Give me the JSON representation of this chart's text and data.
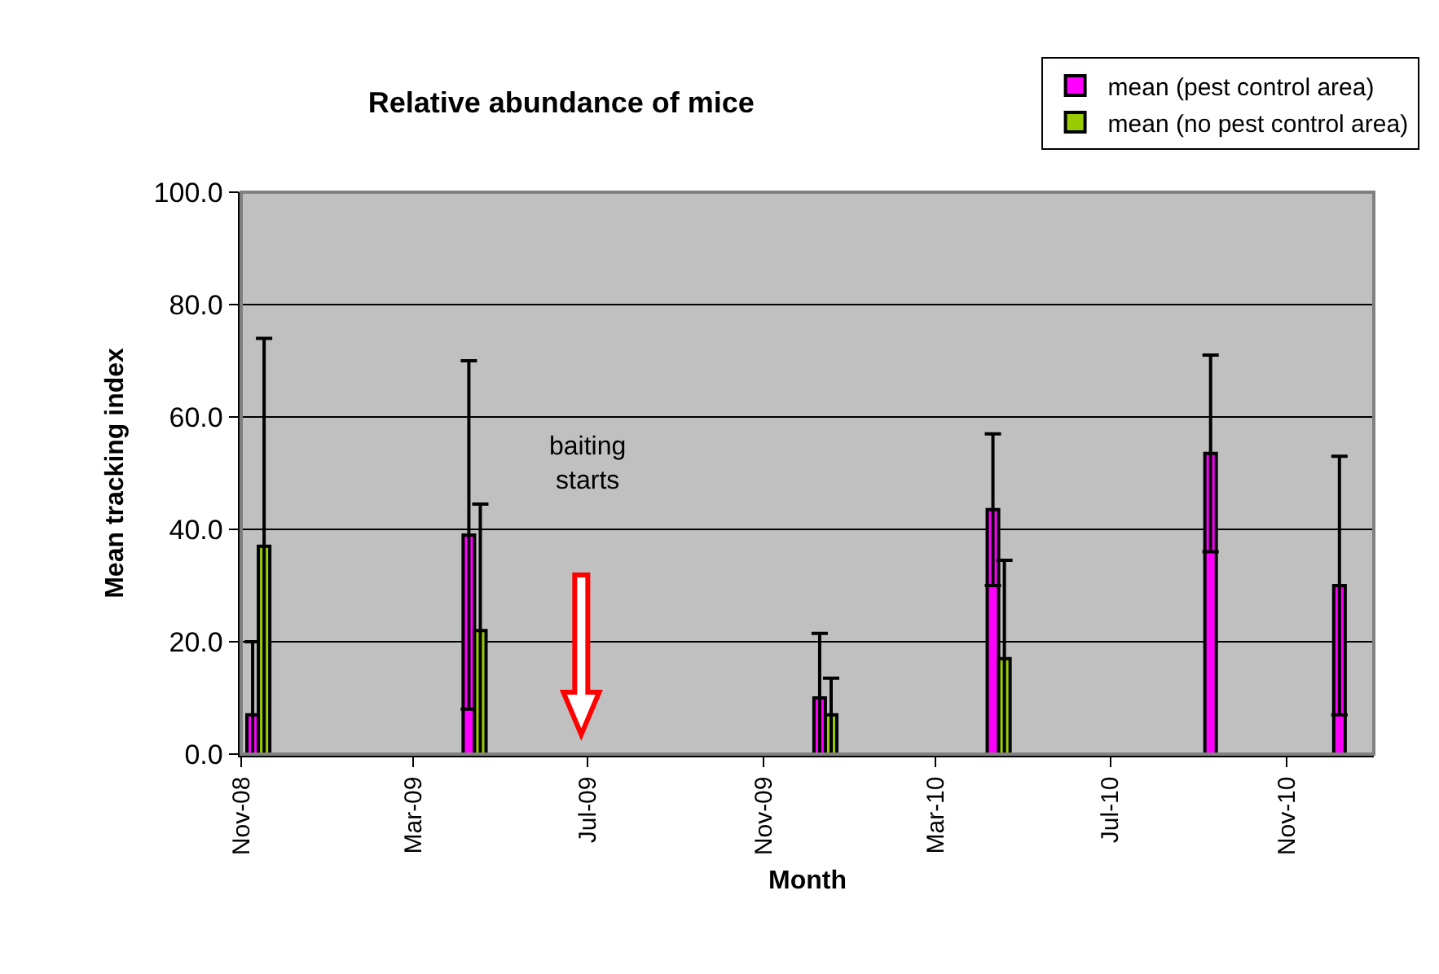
{
  "chart_data": {
    "type": "bar",
    "title": "Relative abundance of mice",
    "xlabel": "Month",
    "ylabel": "Mean tracking index",
    "x": [
      "2008-11-13",
      "2009-04-13",
      "2009-12-14",
      "2010-04-14",
      "2010-09-13",
      "2010-12-12"
    ],
    "series": [
      {
        "name": "mean (pest control area)",
        "color": "#ff00ff",
        "values": [
          7,
          39,
          10,
          43.5,
          53.5,
          30
        ],
        "errors": [
          [
            0,
            20
          ],
          [
            8,
            70
          ],
          [
            0,
            21.5
          ],
          [
            30,
            57
          ],
          [
            36,
            71
          ],
          [
            7,
            53
          ]
        ]
      },
      {
        "name": "mean (no pest control area)",
        "color": "#99cc00",
        "values": [
          37,
          22,
          7,
          17,
          0,
          null
        ],
        "errors": [
          [
            0,
            74
          ],
          [
            0,
            44.5
          ],
          [
            0,
            13.5
          ],
          [
            0,
            34.5
          ],
          null,
          null
        ]
      }
    ],
    "xlim": [
      "2008-11-01",
      "2011-01-01"
    ],
    "xticks": [
      {
        "value": "2008-11-01",
        "label": "Nov-08"
      },
      {
        "value": "2009-03-01",
        "label": "Mar-09"
      },
      {
        "value": "2009-07-01",
        "label": "Jul-09"
      },
      {
        "value": "2009-11-01",
        "label": "Nov-09"
      },
      {
        "value": "2010-03-01",
        "label": "Mar-10"
      },
      {
        "value": "2010-07-01",
        "label": "Jul-10"
      },
      {
        "value": "2010-11-01",
        "label": "Nov-10"
      }
    ],
    "ylim": [
      0,
      100
    ],
    "yticks": [
      {
        "value": 0,
        "label": "0.0"
      },
      {
        "value": 20,
        "label": "20.0"
      },
      {
        "value": 40,
        "label": "40.0"
      },
      {
        "value": 60,
        "label": "60.0"
      },
      {
        "value": 80,
        "label": "80.0"
      },
      {
        "value": 100,
        "label": "100.0"
      }
    ],
    "grid": "y",
    "legend": "top right",
    "annotations": [
      "baiting\nstarts"
    ]
  }
}
